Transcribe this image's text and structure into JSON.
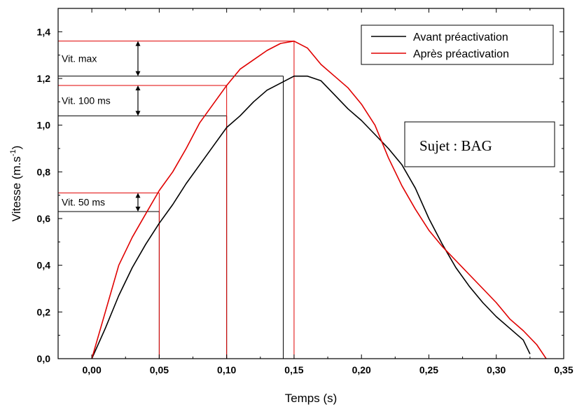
{
  "chart_data": {
    "type": "line",
    "title": "",
    "xlabel": "Temps (s)",
    "ylabel_main": "Vitesse (m.s",
    "ylabel_sup": "-1",
    "ylabel_close": ")",
    "xlim": [
      -0.025,
      0.35
    ],
    "ylim": [
      0,
      1.5
    ],
    "xticks": [
      0.0,
      0.05,
      0.1,
      0.15,
      0.2,
      0.25,
      0.3,
      0.35
    ],
    "xtick_labels": [
      "0,00",
      "0,05",
      "0,10",
      "0,15",
      "0,20",
      "0,25",
      "0,30",
      "0,35"
    ],
    "yticks": [
      0.0,
      0.2,
      0.4,
      0.6,
      0.8,
      1.0,
      1.2,
      1.4
    ],
    "ytick_labels": [
      "0,0",
      "0,2",
      "0,4",
      "0,6",
      "0,8",
      "1,0",
      "1,2",
      "1,4"
    ],
    "legend_position": "top-right",
    "series": [
      {
        "name": "Avant préactivation",
        "color": "#000000",
        "x": [
          0.0,
          0.01,
          0.02,
          0.03,
          0.04,
          0.05,
          0.06,
          0.07,
          0.08,
          0.09,
          0.1,
          0.11,
          0.12,
          0.13,
          0.14,
          0.15,
          0.16,
          0.17,
          0.18,
          0.19,
          0.2,
          0.21,
          0.22,
          0.23,
          0.24,
          0.25,
          0.26,
          0.27,
          0.28,
          0.29,
          0.3,
          0.31,
          0.32,
          0.325
        ],
        "y": [
          0.0,
          0.13,
          0.27,
          0.39,
          0.49,
          0.58,
          0.66,
          0.75,
          0.83,
          0.91,
          0.99,
          1.04,
          1.1,
          1.15,
          1.18,
          1.21,
          1.21,
          1.19,
          1.13,
          1.07,
          1.02,
          0.96,
          0.9,
          0.83,
          0.73,
          0.6,
          0.49,
          0.39,
          0.31,
          0.24,
          0.18,
          0.13,
          0.08,
          0.02
        ]
      },
      {
        "name": "Après préactivation",
        "color": "#e00000",
        "x": [
          0.0,
          0.01,
          0.02,
          0.03,
          0.04,
          0.05,
          0.06,
          0.07,
          0.08,
          0.09,
          0.1,
          0.11,
          0.12,
          0.13,
          0.14,
          0.15,
          0.16,
          0.17,
          0.18,
          0.19,
          0.2,
          0.21,
          0.22,
          0.23,
          0.24,
          0.25,
          0.26,
          0.27,
          0.28,
          0.29,
          0.3,
          0.31,
          0.32,
          0.33,
          0.337
        ],
        "y": [
          0.0,
          0.2,
          0.4,
          0.52,
          0.62,
          0.72,
          0.8,
          0.9,
          1.01,
          1.09,
          1.17,
          1.24,
          1.28,
          1.32,
          1.35,
          1.36,
          1.33,
          1.26,
          1.21,
          1.16,
          1.09,
          1.0,
          0.86,
          0.74,
          0.64,
          0.55,
          0.48,
          0.42,
          0.36,
          0.3,
          0.24,
          0.17,
          0.12,
          0.06,
          0.0
        ]
      }
    ],
    "reference_lines": [
      {
        "color": "#000000",
        "x": 0.05,
        "y": 0.63
      },
      {
        "color": "#e00000",
        "x": 0.05,
        "y": 0.71
      },
      {
        "color": "#000000",
        "x": 0.1,
        "y": 1.04
      },
      {
        "color": "#e00000",
        "x": 0.1,
        "y": 1.17
      },
      {
        "color": "#000000",
        "x": 0.142,
        "y": 1.21
      },
      {
        "color": "#e00000",
        "x": 0.15,
        "y": 1.36
      }
    ],
    "annotations": [
      {
        "label": "Vit. 50 ms",
        "y_low": 0.63,
        "y_high": 0.71
      },
      {
        "label": "Vit. 100 ms",
        "y_low": 1.04,
        "y_high": 1.17
      },
      {
        "label": "Vit. max",
        "y_low": 1.21,
        "y_high": 1.36
      }
    ],
    "subject_label": "Sujet : BAG"
  }
}
